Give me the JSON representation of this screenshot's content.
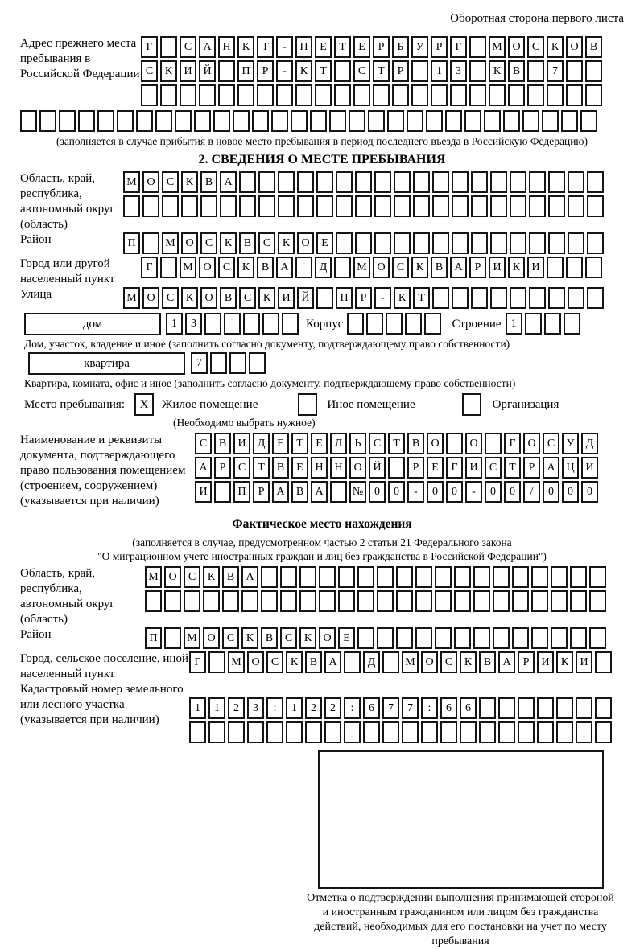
{
  "page": {
    "header_note": "Оборотная сторона первого листа"
  },
  "prev_address": {
    "label": "Адрес прежнего места пребывания в Российской Федерации",
    "rows": [
      [
        "Г",
        "",
        "С",
        "А",
        "Н",
        "К",
        "Т",
        "-",
        "П",
        "Е",
        "Т",
        "Е",
        "Р",
        "Б",
        "У",
        "Р",
        "Г",
        "",
        "М",
        "О",
        "С",
        "К",
        "О",
        "В"
      ],
      [
        "С",
        "К",
        "И",
        "Й",
        "",
        "П",
        "Р",
        "-",
        "К",
        "Т",
        "",
        "С",
        "Т",
        "Р",
        "",
        "1",
        "3",
        "",
        "К",
        "В",
        "",
        "7",
        "",
        ""
      ],
      [
        "",
        "",
        "",
        "",
        "",
        "",
        "",
        "",
        "",
        "",
        "",
        "",
        "",
        "",
        "",
        "",
        "",
        "",
        "",
        "",
        "",
        "",
        "",
        ""
      ]
    ],
    "row_full": [
      "",
      "",
      "",
      "",
      "",
      "",
      "",
      "",
      "",
      "",
      "",
      "",
      "",
      "",
      "",
      "",
      "",
      "",
      "",
      "",
      "",
      "",
      "",
      "",
      "",
      "",
      "",
      "",
      "",
      ""
    ],
    "note": "(заполняется в случае прибытия в новое место пребывания в период последнего въезда в Российскую Федерацию)"
  },
  "section2": {
    "title": "2. СВЕДЕНИЯ О МЕСТЕ ПРЕБЫВАНИЯ",
    "region": {
      "label": "Область, край, республика, автономный округ (область)",
      "rows": [
        [
          "М",
          "О",
          "С",
          "К",
          "В",
          "А",
          "",
          "",
          "",
          "",
          "",
          "",
          "",
          "",
          "",
          "",
          "",
          "",
          "",
          "",
          "",
          "",
          "",
          "",
          ""
        ],
        [
          "",
          "",
          "",
          "",
          "",
          "",
          "",
          "",
          "",
          "",
          "",
          "",
          "",
          "",
          "",
          "",
          "",
          "",
          "",
          "",
          "",
          "",
          "",
          "",
          ""
        ]
      ]
    },
    "district": {
      "label": "Район",
      "cells": [
        "П",
        "",
        "М",
        "О",
        "С",
        "К",
        "В",
        "С",
        "К",
        "О",
        "Е",
        "",
        "",
        "",
        "",
        "",
        "",
        "",
        "",
        "",
        "",
        "",
        "",
        "",
        ""
      ]
    },
    "city": {
      "label": "Город или другой населенный пункт",
      "cells": [
        "Г",
        "",
        "М",
        "О",
        "С",
        "К",
        "В",
        "А",
        "",
        "Д",
        "",
        "М",
        "О",
        "С",
        "К",
        "В",
        "А",
        "Р",
        "И",
        "К",
        "И",
        "",
        "",
        ""
      ]
    },
    "street": {
      "label": "Улица",
      "cells": [
        "М",
        "О",
        "С",
        "К",
        "О",
        "В",
        "С",
        "К",
        "И",
        "Й",
        "",
        "П",
        "Р",
        "-",
        "К",
        "Т",
        "",
        "",
        "",
        "",
        "",
        "",
        "",
        "",
        ""
      ]
    },
    "house": {
      "box_label": "дом",
      "cells": [
        "1",
        "3",
        "",
        "",
        "",
        "",
        ""
      ],
      "korpus_label": "Корпус",
      "korpus_cells": [
        "",
        "",
        "",
        "",
        ""
      ],
      "stroenie_label": "Строение",
      "stroenie_cells": [
        "1",
        "",
        "",
        ""
      ]
    },
    "house_note": "Дом, участок, владение и иное (заполнить согласно документу, подтверждающему право собственности)",
    "apartment": {
      "box_label": "квартира",
      "cells": [
        "7",
        "",
        "",
        ""
      ]
    },
    "apartment_note": "Квартира, комната, офис и иное (заполнить согласно документу, подтверждающему право собственности)",
    "stay_type": {
      "label": "Место пребывания:",
      "options": [
        {
          "label": "Жилое помещение",
          "checked": "X"
        },
        {
          "label": "Иное помещение",
          "checked": ""
        },
        {
          "label": "Организация",
          "checked": ""
        }
      ],
      "note": "(Необходимо выбрать нужное)"
    },
    "document": {
      "label": "Наименование и реквизиты документа, подтверждающего право пользования помещением (строением, сооружением) (указывается при наличии)",
      "rows": [
        [
          "С",
          "В",
          "И",
          "Д",
          "Е",
          "Т",
          "Е",
          "Л",
          "Ь",
          "С",
          "Т",
          "В",
          "О",
          "",
          "О",
          "",
          "Г",
          "О",
          "С",
          "У",
          "Д"
        ],
        [
          "А",
          "Р",
          "С",
          "Т",
          "В",
          "Е",
          "Н",
          "Н",
          "О",
          "Й",
          "",
          "Р",
          "Е",
          "Г",
          "И",
          "С",
          "Т",
          "Р",
          "А",
          "Ц",
          "И"
        ],
        [
          "И",
          "",
          "П",
          "Р",
          "А",
          "В",
          "А",
          "",
          "№",
          "0",
          "0",
          "-",
          "0",
          "0",
          "-",
          "0",
          "0",
          "/",
          "0",
          "0",
          "0"
        ]
      ]
    }
  },
  "actual_location": {
    "title": "Фактическое место нахождения",
    "note_line1": "(заполняется в случае, предусмотренном частью 2 статьи 21 Федерального закона",
    "note_line2": "\"О миграционном учете иностранных граждан и лиц без гражданства в Российской Федерации\")",
    "region": {
      "label": "Область, край, республика, автономный округ (область)",
      "rows": [
        [
          "М",
          "О",
          "С",
          "К",
          "В",
          "А",
          "",
          "",
          "",
          "",
          "",
          "",
          "",
          "",
          "",
          "",
          "",
          "",
          "",
          "",
          "",
          "",
          "",
          ""
        ],
        [
          "",
          "",
          "",
          "",
          "",
          "",
          "",
          "",
          "",
          "",
          "",
          "",
          "",
          "",
          "",
          "",
          "",
          "",
          "",
          "",
          "",
          "",
          "",
          ""
        ]
      ]
    },
    "district": {
      "label": "Район",
      "cells": [
        "П",
        "",
        "М",
        "О",
        "С",
        "К",
        "В",
        "С",
        "К",
        "О",
        "Е",
        "",
        "",
        "",
        "",
        "",
        "",
        "",
        "",
        "",
        "",
        "",
        "",
        ""
      ]
    },
    "city": {
      "label": "Город, сельское поселение, иной населенный пункт",
      "cells": [
        "Г",
        "",
        "М",
        "О",
        "С",
        "К",
        "В",
        "А",
        "",
        "Д",
        "",
        "М",
        "О",
        "С",
        "К",
        "В",
        "А",
        "Р",
        "И",
        "К",
        "И",
        ""
      ]
    },
    "cadastral": {
      "label": "Кадастровый номер земельного или лесного участка (указывается при наличии)",
      "rows": [
        [
          "1",
          "1",
          "2",
          "3",
          ":",
          "1",
          "2",
          "2",
          ":",
          "6",
          "7",
          "7",
          ":",
          "6",
          "6",
          "",
          "",
          "",
          "",
          "",
          "",
          ""
        ],
        [
          "",
          "",
          "",
          "",
          "",
          "",
          "",
          "",
          "",
          "",
          "",
          "",
          "",
          "",
          "",
          "",
          "",
          "",
          "",
          "",
          "",
          ""
        ]
      ]
    },
    "stamp_caption": "Отметка о подтверждении выполнения принимающей стороной и иностранным гражданином или лицом без гражданства действий, необходимых для его постановки на учет по месту пребывания"
  }
}
